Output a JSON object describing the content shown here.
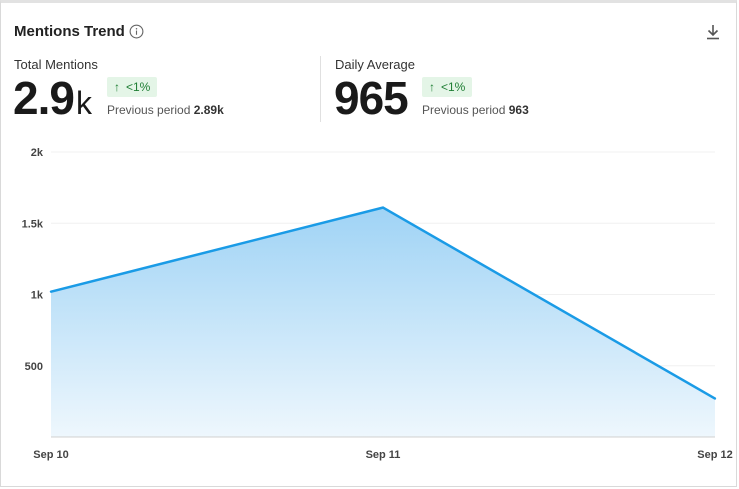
{
  "header": {
    "title": "Mentions Trend"
  },
  "metrics": [
    {
      "label": "Total Mentions",
      "value": "2.9",
      "unit": "k",
      "change": "<1%",
      "previous_label": "Previous period",
      "previous_value": "2.89k"
    },
    {
      "label": "Daily Average",
      "value": "965",
      "unit": "",
      "change": "<1%",
      "previous_label": "Previous period",
      "previous_value": "963"
    }
  ],
  "colors": {
    "line": "#1a9be6",
    "fill_top": "#9fd3f5",
    "fill_bottom": "#eef7fd",
    "badge_bg": "#e4f5e7",
    "badge_text": "#1e7e34"
  },
  "chart_data": {
    "type": "area",
    "x": [
      "Sep 10",
      "Sep 11",
      "Sep 12"
    ],
    "series": [
      {
        "values": [
          1020,
          1610,
          270
        ]
      }
    ],
    "yticks": [
      {
        "value": 500,
        "label": "500"
      },
      {
        "value": 1000,
        "label": "1k"
      },
      {
        "value": 1500,
        "label": "1.5k"
      },
      {
        "value": 2000,
        "label": "2k"
      }
    ],
    "ylim": [
      0,
      2000
    ],
    "grid": true,
    "title": "",
    "xlabel": "",
    "ylabel": ""
  }
}
